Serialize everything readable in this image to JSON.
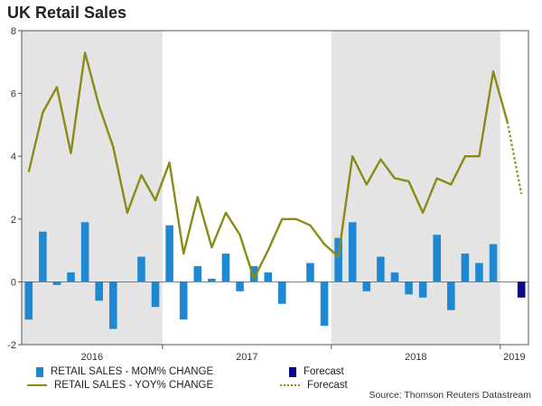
{
  "chart_data": {
    "type": "bar+line",
    "title": "UK Retail Sales",
    "xlabel": "",
    "ylabel": "",
    "ylim": [
      -2,
      8
    ],
    "yticks": [
      -2,
      0,
      2,
      4,
      6,
      8
    ],
    "x_tick_labels": [
      "2016",
      "2017",
      "2018",
      "2019"
    ],
    "grid": false,
    "shaded_years": [
      "2016",
      "2018"
    ],
    "series": [
      {
        "name": "RETAIL SALES - MOM% CHANGE",
        "type": "bar",
        "color": "#1e88d2",
        "values": [
          -1.2,
          1.6,
          -0.1,
          0.3,
          1.9,
          -0.6,
          -1.5,
          null,
          0.8,
          -0.8,
          1.8,
          -1.2,
          0.5,
          0.1,
          0.9,
          -0.3,
          0.5,
          0.3,
          -0.7,
          null,
          0.6,
          -1.4,
          1.4,
          1.9,
          -0.3,
          0.8,
          0.3,
          -0.4,
          -0.5,
          1.5,
          -0.9,
          0.9,
          0.6,
          1.2,
          null,
          null
        ]
      },
      {
        "name": "RETAIL SALES - YOY% CHANGE",
        "type": "line",
        "color": "#8a8a16",
        "values": [
          3.5,
          5.4,
          6.2,
          4.1,
          7.3,
          5.6,
          4.3,
          2.2,
          3.4,
          2.6,
          3.8,
          0.9,
          2.7,
          1.1,
          2.2,
          1.5,
          0.1,
          1.0,
          2.0,
          2.0,
          1.8,
          1.2,
          0.8,
          4.0,
          3.1,
          3.9,
          3.3,
          3.2,
          2.2,
          3.3,
          3.1,
          4.0,
          4.0,
          6.7,
          5.1,
          null
        ]
      },
      {
        "name": "Forecast",
        "type": "bar",
        "color": "#0a0a8c",
        "values": [
          null,
          null,
          null,
          null,
          null,
          null,
          null,
          null,
          null,
          null,
          null,
          null,
          null,
          null,
          null,
          null,
          null,
          null,
          null,
          null,
          null,
          null,
          null,
          null,
          null,
          null,
          null,
          null,
          null,
          null,
          null,
          null,
          null,
          null,
          null,
          -0.5
        ]
      },
      {
        "name": "Forecast",
        "type": "line-dotted",
        "color": "#8a8a16",
        "values": [
          null,
          null,
          null,
          null,
          null,
          null,
          null,
          null,
          null,
          null,
          null,
          null,
          null,
          null,
          null,
          null,
          null,
          null,
          null,
          null,
          null,
          null,
          null,
          null,
          null,
          null,
          null,
          null,
          null,
          null,
          null,
          null,
          null,
          null,
          5.1,
          2.8
        ]
      }
    ],
    "source": "Source: Thomson Reuters Datastream"
  }
}
